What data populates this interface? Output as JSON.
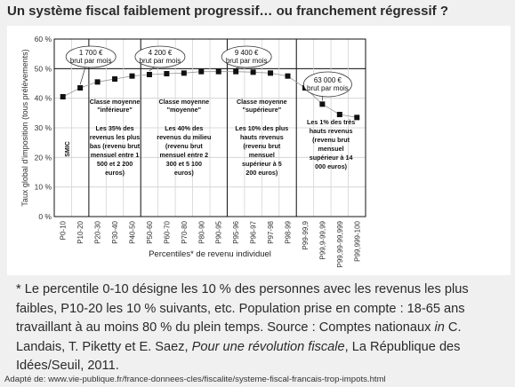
{
  "title": "Un système fiscal faiblement progressif… ou franchement régressif ?",
  "chart_data": {
    "type": "line",
    "ylabel": "Taux global d'imposition (tous prélèvements)",
    "xlabel": "Percentiles* de revenu individuel",
    "ylim": [
      0,
      60
    ],
    "yticks": [
      "0 %",
      "10 %",
      "20 %",
      "30 %",
      "40 %",
      "50 %",
      "60 %"
    ],
    "categories": [
      "P0-10",
      "P10-20",
      "P20-30",
      "P30-40",
      "P40-50",
      "P50-60",
      "P60-70",
      "P70-80",
      "P80-90",
      "P90-95",
      "P95-96",
      "P96-97",
      "P97-98",
      "P98-99",
      "P99-99,9",
      "P99,9-99,99",
      "P99,99-99,999",
      "P99,999-100"
    ],
    "values": [
      40.5,
      43.5,
      45.5,
      46.5,
      47.5,
      48,
      48.3,
      48.5,
      49,
      49,
      49,
      48.8,
      48.5,
      47.5,
      43.5,
      38,
      34.5,
      33.5
    ],
    "smic_label": "SMIC",
    "groups": [
      {
        "head": "Classe moyenne \"inférieure\"",
        "body": "Les 35% des revenus les plus bas (revenu brut mensuel entre 1 500 et 2 200 euros)"
      },
      {
        "head": "Classe moyenne \"moyenne\"",
        "body": "Les 40% des revenus du milieu (revenu brut mensuel entre 2 300 et 5 100 euros)"
      },
      {
        "head": "Classe moyenne \"supérieure\"",
        "body": "Les 10% des plus hauts revenus (revenu brut mensuel supérieur à 5 200 euros)"
      },
      {
        "head": "",
        "body": "Les 1% des très hauts revenus (revenu brut mensuel supérieur à 14 000 euros)"
      }
    ],
    "callouts": [
      {
        "text": "1 700 € brut par mois",
        "at": "P10-20"
      },
      {
        "text": "4 200 € brut par mois",
        "at": "P50-60"
      },
      {
        "text": "9 400 € brut par mois",
        "at": "P95-96"
      },
      {
        "text": "63 000 € brut par mois",
        "at": "P99,9-99,99"
      }
    ]
  },
  "note": {
    "a": "*  Le percentile 0-10 désigne les 10 % des personnes avec les revenus les plus faibles, P10-20 les 10 % suivants, etc. Population prise en compte : 18-65 ans travaillant à au moins 80 % du plein temps. Source : Comptes nationaux ",
    "b": "in",
    "c": " C. Landais, T. Piketty et E. Saez, ",
    "d": "Pour une révolution fiscale",
    "e": ", La République des Idées/Seuil, 2011."
  },
  "source": "Adapté de: www.vie-publique.fr/france-donnees-cles/fiscalite/systeme-fiscal-francais-trop-impots.html"
}
